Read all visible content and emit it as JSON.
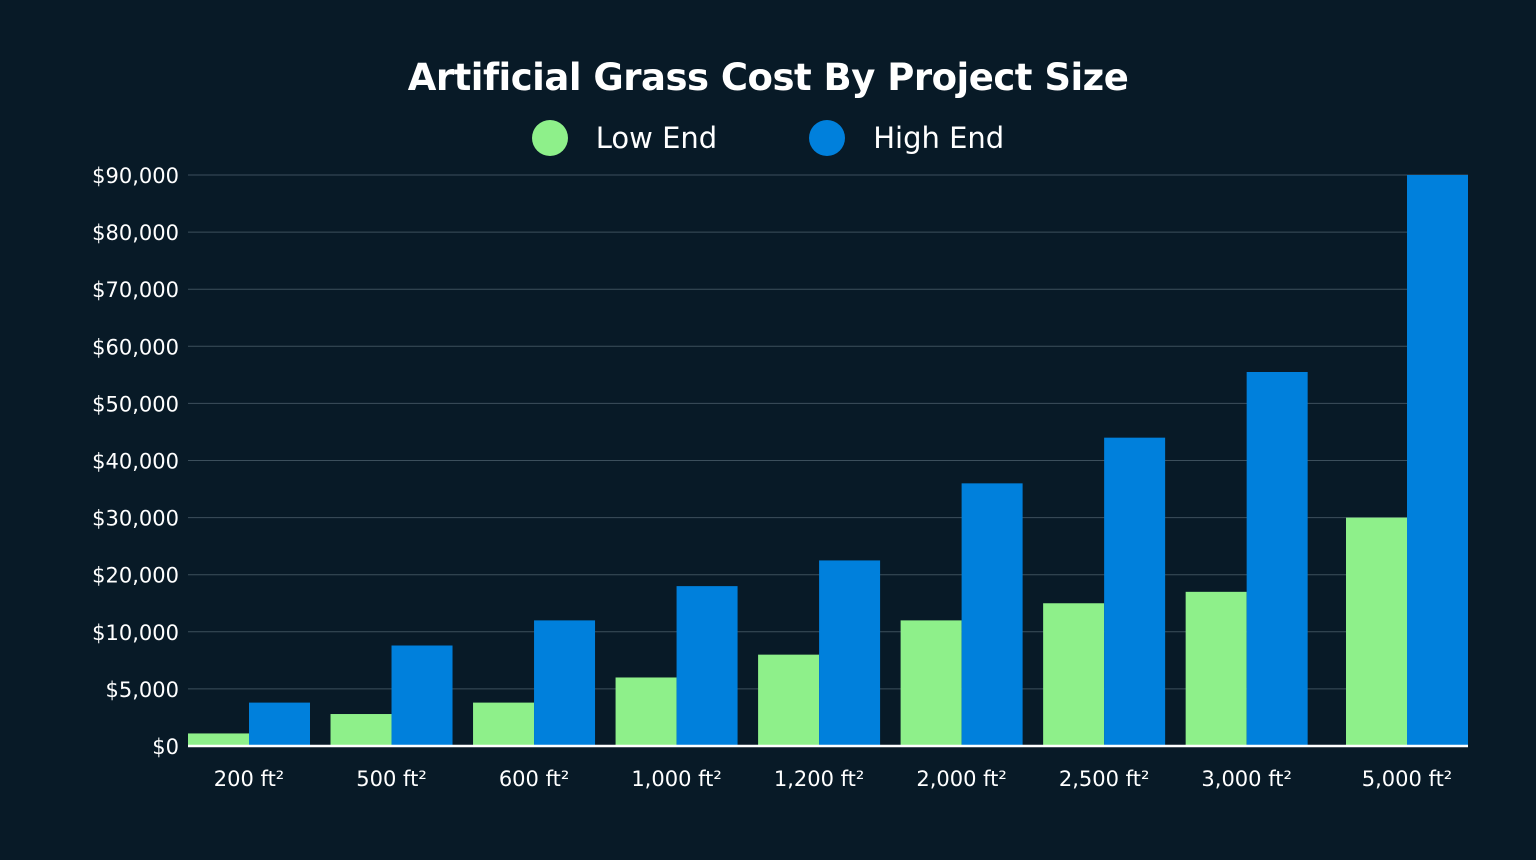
{
  "chart_data": {
    "type": "bar",
    "title": "Artificial Grass Cost By Project Size",
    "categories": [
      "200 ft²",
      "500 ft²",
      "600 ft²",
      "1,000 ft²",
      "1,200 ft²",
      "2,000 ft²",
      "2,500 ft²",
      "3,000 ft²",
      "5,000 ft²"
    ],
    "series": [
      {
        "name": "Low End",
        "color": "#8ef08a",
        "values": [
          1100,
          2800,
          3800,
          6000,
          8000,
          12000,
          15000,
          17000,
          30000
        ]
      },
      {
        "name": "High End",
        "color": "#0080dc",
        "values": [
          3800,
          8800,
          12000,
          18000,
          22500,
          36000,
          44000,
          55500,
          90000
        ]
      }
    ],
    "y_ticks": [
      0,
      5000,
      10000,
      20000,
      30000,
      40000,
      50000,
      60000,
      70000,
      80000,
      90000
    ],
    "y_tick_labels": [
      "$0",
      "$5,000",
      "$10,000",
      "$20,000",
      "$30,000",
      "$40,000",
      "$50,000",
      "$60,000",
      "$70,000",
      "$80,000",
      "$90,000"
    ],
    "ylim": [
      0,
      90000
    ],
    "y_scale": "non-uniform (evenly spaced ticks)",
    "grid": true,
    "legend_position": "top-center",
    "xlabel": "",
    "ylabel": ""
  }
}
